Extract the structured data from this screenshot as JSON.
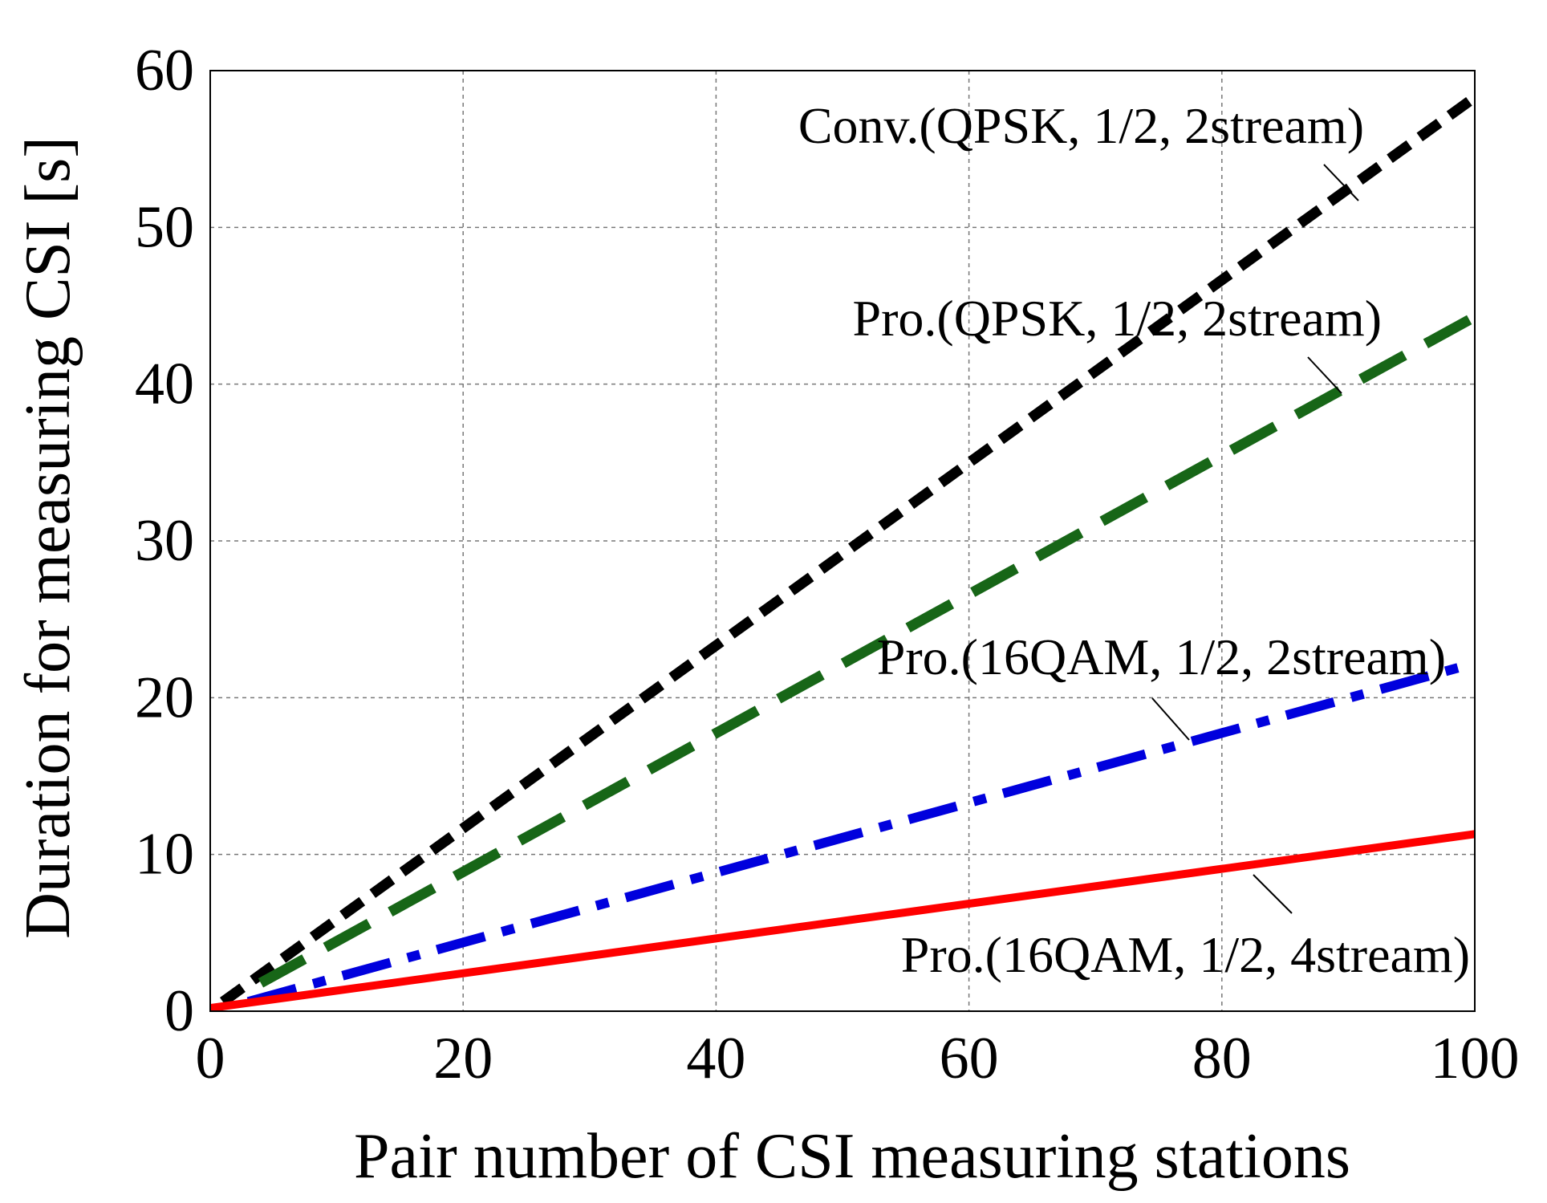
{
  "chart_data": {
    "type": "line",
    "title": "",
    "xlabel": "Pair number of CSI measuring stations",
    "ylabel": "Duration for measuring CSI [s]",
    "xlim": [
      0,
      100
    ],
    "ylim": [
      0,
      60
    ],
    "xticks": [
      "0",
      "20",
      "40",
      "60",
      "80",
      "100"
    ],
    "yticks": [
      "0",
      "10",
      "20",
      "30",
      "40",
      "50",
      "60"
    ],
    "grid": true,
    "legend": "none",
    "series": [
      {
        "name": "Conv.(QPSK, 1/2, 2stream)",
        "color": "#000000",
        "style": "dotted",
        "x": [
          1,
          100
        ],
        "y": [
          0.6,
          58.3
        ]
      },
      {
        "name": "Pro.(QPSK, 1/2, 2stream)",
        "color": "#176617",
        "style": "dashed",
        "x": [
          4,
          100
        ],
        "y": [
          1.8,
          44.3
        ]
      },
      {
        "name": "Pro.(16QAM, 1/2, 2stream)",
        "color": "#0000dd",
        "style": "dash-dot",
        "x": [
          3,
          100
        ],
        "y": [
          0.6,
          22.2
        ]
      },
      {
        "name": "Pro.(16QAM, 1/2, 4stream)",
        "color": "#ff0000",
        "style": "solid",
        "x": [
          0,
          100
        ],
        "y": [
          0.2,
          11.3
        ]
      }
    ],
    "annotations": [
      {
        "text": "Conv.(QPSK, 1/2, 2stream)",
        "series": 0
      },
      {
        "text": "Pro.(QPSK, 1/2, 2stream)",
        "series": 1
      },
      {
        "text": "Pro.(16QAM, 1/2, 2stream)",
        "series": 2
      },
      {
        "text": "Pro.(16QAM, 1/2, 4stream)",
        "series": 3
      }
    ]
  }
}
